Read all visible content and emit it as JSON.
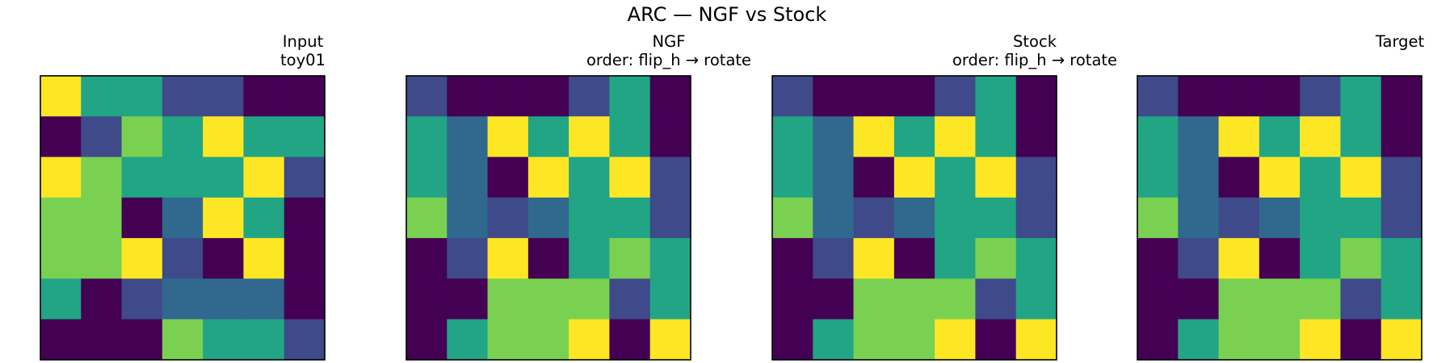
{
  "chart_data": {
    "type": "heatmap",
    "title": "ARC — NGF vs Stock",
    "colormap": "viridis",
    "palette": {
      "0": "#440154",
      "1": "#3e4a89",
      "2": "#31688e",
      "3": "#21a585",
      "4": "#7ad151",
      "5": "#fde725"
    },
    "panels": [
      {
        "title_lines": [
          "Input",
          "toy01"
        ],
        "grid": [
          [
            5,
            3,
            3,
            1,
            1,
            0,
            0
          ],
          [
            0,
            1,
            4,
            3,
            5,
            3,
            3
          ],
          [
            5,
            4,
            3,
            3,
            3,
            5,
            1
          ],
          [
            4,
            4,
            0,
            2,
            5,
            3,
            0
          ],
          [
            4,
            4,
            5,
            1,
            0,
            5,
            0
          ],
          [
            3,
            0,
            1,
            2,
            2,
            2,
            0
          ],
          [
            0,
            0,
            0,
            4,
            3,
            3,
            1
          ]
        ]
      },
      {
        "title_lines": [
          "NGF",
          "order: flip_h → rotate"
        ],
        "grid": [
          [
            1,
            0,
            0,
            0,
            1,
            3,
            0
          ],
          [
            3,
            2,
            5,
            3,
            5,
            3,
            0
          ],
          [
            3,
            2,
            0,
            5,
            3,
            5,
            1
          ],
          [
            4,
            2,
            1,
            2,
            3,
            3,
            1
          ],
          [
            0,
            1,
            5,
            0,
            3,
            4,
            3
          ],
          [
            0,
            0,
            4,
            4,
            4,
            1,
            3
          ],
          [
            0,
            3,
            4,
            4,
            5,
            0,
            5
          ]
        ]
      },
      {
        "title_lines": [
          "Stock",
          "order: flip_h → rotate"
        ],
        "grid": [
          [
            1,
            0,
            0,
            0,
            1,
            3,
            0
          ],
          [
            3,
            2,
            5,
            3,
            5,
            3,
            0
          ],
          [
            3,
            2,
            0,
            5,
            3,
            5,
            1
          ],
          [
            4,
            2,
            1,
            2,
            3,
            3,
            1
          ],
          [
            0,
            1,
            5,
            0,
            3,
            4,
            3
          ],
          [
            0,
            0,
            4,
            4,
            4,
            1,
            3
          ],
          [
            0,
            3,
            4,
            4,
            5,
            0,
            5
          ]
        ]
      },
      {
        "title_lines": [
          "",
          "Target"
        ],
        "grid": [
          [
            1,
            0,
            0,
            0,
            1,
            3,
            0
          ],
          [
            3,
            2,
            5,
            3,
            5,
            3,
            0
          ],
          [
            3,
            2,
            0,
            5,
            3,
            5,
            1
          ],
          [
            4,
            2,
            1,
            2,
            3,
            3,
            1
          ],
          [
            0,
            1,
            5,
            0,
            3,
            4,
            3
          ],
          [
            0,
            0,
            4,
            4,
            4,
            1,
            3
          ],
          [
            0,
            3,
            4,
            4,
            5,
            0,
            5
          ]
        ]
      }
    ]
  }
}
